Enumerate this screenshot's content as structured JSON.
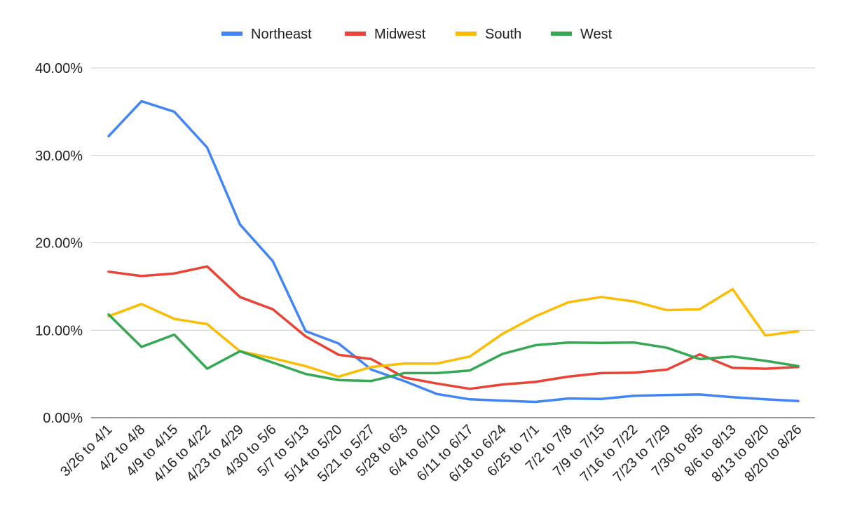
{
  "chart_data": {
    "type": "line",
    "title": "",
    "xlabel": "",
    "ylabel": "",
    "ylim": [
      0,
      40
    ],
    "y_ticks": [
      0,
      10,
      20,
      30,
      40
    ],
    "y_tick_labels": [
      "0.00%",
      "10.00%",
      "20.00%",
      "30.00%",
      "40.00%"
    ],
    "grid": true,
    "legend_position": "top",
    "categories": [
      "3/26 to 4/1",
      "4/2 to 4/8",
      "4/9 to 4/15",
      "4/16 to 4/22",
      "4/23 to 4/29",
      "4/30 to 5/6",
      "5/7 to 5/13",
      "5/14 to 5/20",
      "5/21 to 5/27",
      "5/28 to 6/3",
      "6/4 to 6/10",
      "6/11 to 6/17",
      "6/18 to 6/24",
      "6/25 to 7/1",
      "7/2 to 7/8",
      "7/9 to 7/15",
      "7/16 to 7/22",
      "7/23 to 7/29",
      "7/30 to 8/5",
      "8/6 to 8/13",
      "8/13 to 8/20",
      "8/20 to 8/26"
    ],
    "series": [
      {
        "name": "Northeast",
        "color": "#4285f4",
        "values": [
          32.2,
          36.2,
          35.0,
          30.9,
          22.1,
          17.9,
          9.9,
          8.5,
          5.5,
          4.2,
          2.7,
          2.1,
          1.95,
          1.8,
          2.2,
          2.15,
          2.5,
          2.6,
          2.65,
          2.35,
          2.1,
          1.9
        ]
      },
      {
        "name": "Midwest",
        "color": "#ea4335",
        "values": [
          16.7,
          16.2,
          16.5,
          17.3,
          13.8,
          12.4,
          9.3,
          7.2,
          6.7,
          4.6,
          3.9,
          3.3,
          3.8,
          4.1,
          4.7,
          5.1,
          5.15,
          5.5,
          7.25,
          5.7,
          5.6,
          5.8
        ]
      },
      {
        "name": "South",
        "color": "#fbbc04",
        "values": [
          11.6,
          13.0,
          11.3,
          10.7,
          7.6,
          6.8,
          5.9,
          4.7,
          5.8,
          6.2,
          6.2,
          7.0,
          9.6,
          11.6,
          13.2,
          13.8,
          13.3,
          12.3,
          12.4,
          14.7,
          9.4,
          9.9
        ]
      },
      {
        "name": "West",
        "color": "#34a853",
        "values": [
          11.8,
          8.1,
          9.5,
          5.6,
          7.6,
          6.3,
          5.0,
          4.3,
          4.2,
          5.1,
          5.1,
          5.4,
          7.3,
          8.3,
          8.6,
          8.55,
          8.6,
          8.0,
          6.7,
          7.0,
          6.5,
          5.9
        ]
      }
    ]
  }
}
